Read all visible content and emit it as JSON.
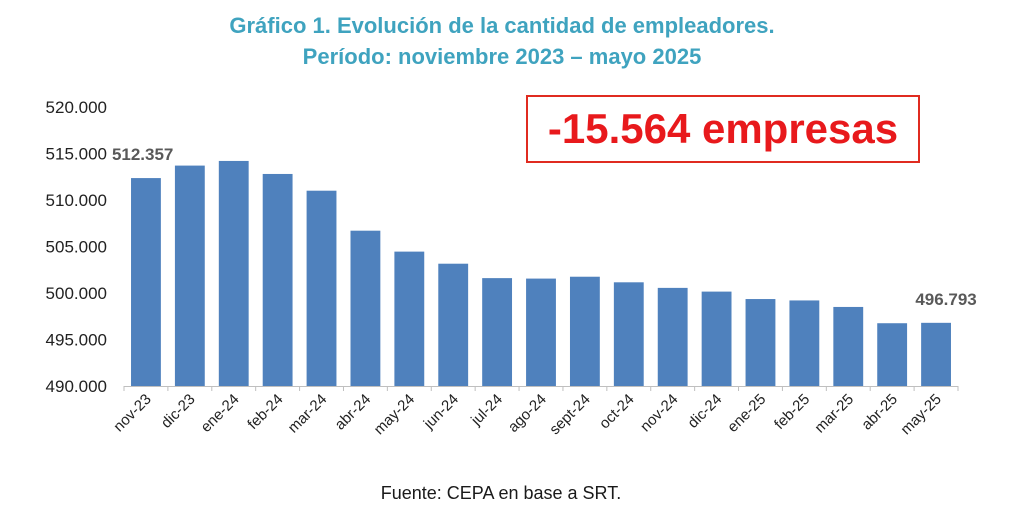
{
  "title": {
    "line1": "Gráfico 1. Evolución de la cantidad de empleadores.",
    "line2": "Período: noviembre 2023 – mayo 2025"
  },
  "callout": "-15.564 empresas",
  "source": "Fuente: CEPA en base a SRT.",
  "colors": {
    "bar": "#4f81bd",
    "title": "#3fa3bf",
    "callout_text": "#e8191c",
    "callout_border": "#e02b20"
  },
  "chart_data": {
    "type": "bar",
    "title": "Gráfico 1. Evolución de la cantidad de empleadores. Período: noviembre 2023 – mayo 2025",
    "xlabel": "",
    "ylabel": "",
    "ylim": [
      490000,
      520000
    ],
    "y_ticks": [
      {
        "value": 490000,
        "label": "490.000"
      },
      {
        "value": 495000,
        "label": "495.000"
      },
      {
        "value": 500000,
        "label": "500.000"
      },
      {
        "value": 505000,
        "label": "505.000"
      },
      {
        "value": 510000,
        "label": "510.000"
      },
      {
        "value": 515000,
        "label": "515.000"
      },
      {
        "value": 520000,
        "label": "520.000"
      }
    ],
    "grid": false,
    "categories": [
      "nov-23",
      "dic-23",
      "ene-24",
      "feb-24",
      "mar-24",
      "abr-24",
      "may-24",
      "jun-24",
      "jul-24",
      "ago-24",
      "sept-24",
      "oct-24",
      "nov-24",
      "dic-24",
      "ene-25",
      "feb-25",
      "mar-25",
      "abr-25",
      "may-25"
    ],
    "values": [
      512357,
      513700,
      514200,
      512800,
      511000,
      506700,
      504450,
      503150,
      501600,
      501550,
      501750,
      501150,
      500550,
      500150,
      499350,
      499200,
      498500,
      496750,
      496793
    ],
    "data_labels": [
      {
        "index": 0,
        "text": "512.357"
      },
      {
        "index": 18,
        "text": "496.793"
      }
    ]
  }
}
